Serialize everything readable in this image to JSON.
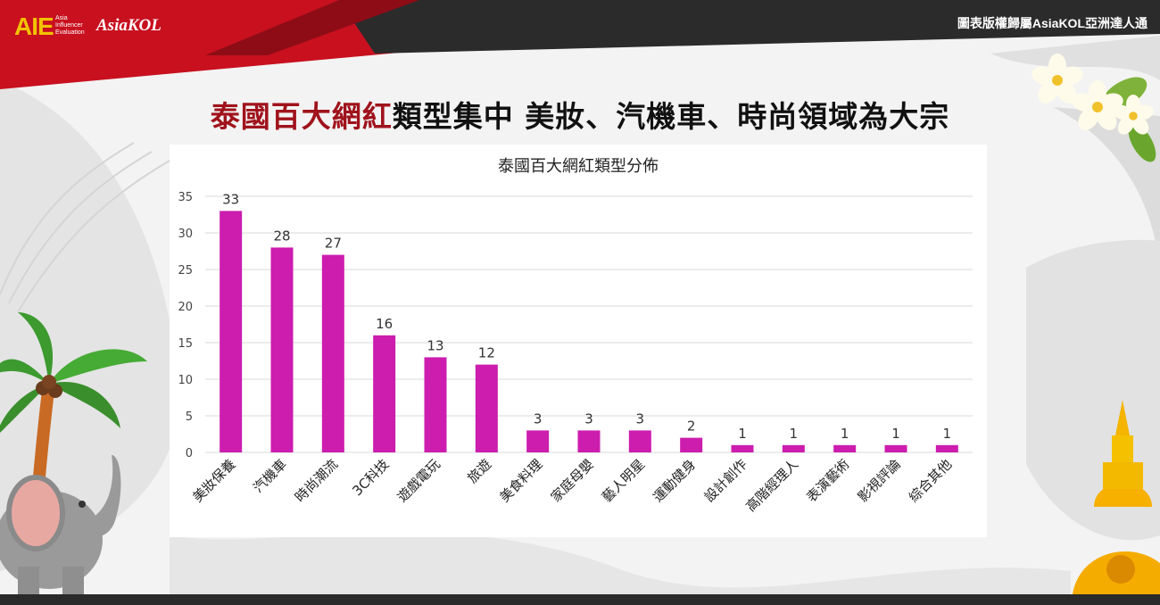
{
  "header": {
    "logo_main": "AIE",
    "logo_sub": [
      "Asia",
      "Influencer",
      "Evaluation"
    ],
    "logo_kol": "AsiaKOL",
    "copyright": "圖表版權歸屬AsiaKOL亞洲達人通"
  },
  "headline": {
    "accent": "泰國百大網紅",
    "rest": "類型集中 美妝、汽機車、時尚領域為大宗"
  },
  "watermark": "AsiaKOL",
  "colors": {
    "bar": "#cc1dae",
    "accent": "#a0131c",
    "top_banner": "#c8101f",
    "top_band": "#2b2b2b"
  },
  "chart_data": {
    "type": "bar",
    "title": "泰國百大網紅類型分佈",
    "categories": [
      "美妝保養",
      "汽機車",
      "時尚潮流",
      "3C科技",
      "遊戲電玩",
      "旅遊",
      "美食料理",
      "家庭母嬰",
      "藝人明星",
      "運動健身",
      "設計創作",
      "高階經理人",
      "表演藝術",
      "影視評論",
      "綜合其他"
    ],
    "values": [
      33,
      28,
      27,
      16,
      13,
      12,
      3,
      3,
      3,
      2,
      1,
      1,
      1,
      1,
      1
    ],
    "data_labels": [
      "33",
      "28",
      "27",
      "16",
      "13",
      "12",
      "3",
      "3",
      "3",
      "2",
      "1",
      "1",
      "1",
      "1",
      "1"
    ],
    "y_ticks": [
      "0",
      "5",
      "10",
      "15",
      "20",
      "25",
      "30",
      "35"
    ],
    "ylim": [
      0,
      35
    ],
    "xlabel": "",
    "ylabel": "",
    "grid": true,
    "legend": "none"
  }
}
